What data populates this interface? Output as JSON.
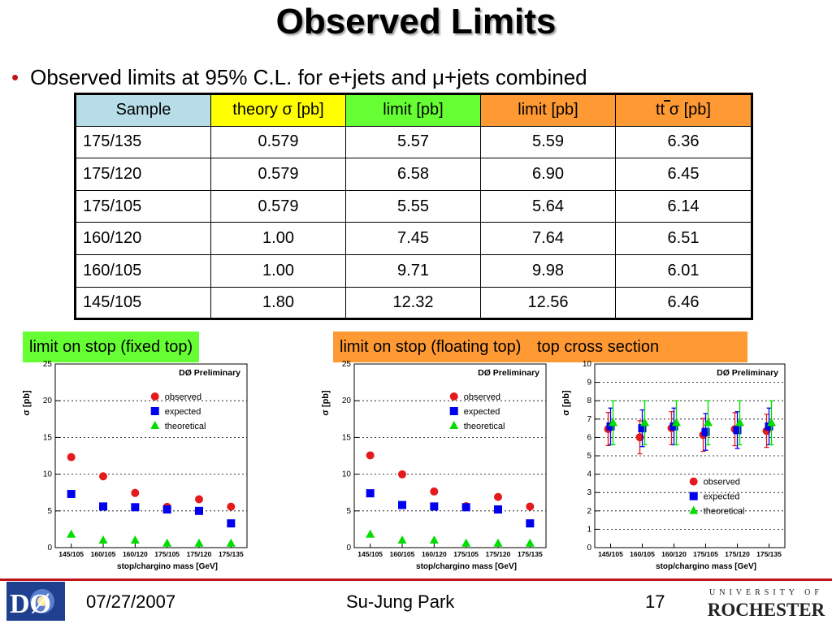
{
  "slide": {
    "title": "Observed Limits",
    "bullet": "Observed limits at 95% C.L. for e+jets and μ+jets combined",
    "footer": {
      "date": "07/27/2007",
      "author": "Su-Jung Park",
      "page": "17"
    },
    "logos": {
      "left": "DØ",
      "right_top": "UNIVERSITY OF",
      "right_bottom": "ROCHESTER"
    }
  },
  "table": {
    "headers": [
      "Sample",
      "theory σ [pb]",
      "limit [pb]",
      "limit [pb]",
      "tt σ [pb]"
    ],
    "header_colors": [
      "#b7dde8",
      "#ffff00",
      "#66ff33",
      "#ff9933",
      "#ff9933"
    ],
    "rows": [
      [
        "175/135",
        "0.579",
        "5.57",
        "5.59",
        "6.36"
      ],
      [
        "175/120",
        "0.579",
        "6.58",
        "6.90",
        "6.45"
      ],
      [
        "175/105",
        "0.579",
        "5.55",
        "5.64",
        "6.14"
      ],
      [
        "160/120",
        "1.00",
        "7.45",
        "7.64",
        "6.51"
      ],
      [
        "160/105",
        "1.00",
        "9.71",
        "9.98",
        "6.01"
      ],
      [
        "145/105",
        "1.80",
        "12.32",
        "12.56",
        "6.46"
      ]
    ]
  },
  "labels": {
    "fixed": "limit on stop (fixed top)",
    "floating": "limit on stop (floating top)",
    "xsec": "top cross section"
  },
  "colors": {
    "green_box": "#66ff33",
    "orange_box": "#ff9933",
    "observed": "#e41a1c",
    "expected": "#0000ee",
    "theoretical": "#00dd00",
    "accent_red": "#c0141b"
  },
  "chart_data": [
    {
      "type": "scatter",
      "title": "DØ Preliminary",
      "xlabel": "stop/chargino mass [GeV]",
      "ylabel": "σ [pb]",
      "categories": [
        "145/105",
        "160/105",
        "160/120",
        "175/105",
        "175/120",
        "175/135"
      ],
      "ylim": [
        0,
        25
      ],
      "yticks": [
        0,
        5,
        10,
        15,
        20,
        25
      ],
      "grid": true,
      "legend_position": "top-right",
      "series": [
        {
          "name": "observed",
          "marker": "circle",
          "values": [
            12.32,
            9.71,
            7.45,
            5.55,
            6.58,
            5.57
          ]
        },
        {
          "name": "expected",
          "marker": "square",
          "values": [
            7.3,
            5.6,
            5.5,
            5.2,
            5.0,
            3.3
          ]
        },
        {
          "name": "theoretical",
          "marker": "triangle",
          "values": [
            1.8,
            1.0,
            1.0,
            0.579,
            0.579,
            0.579
          ]
        }
      ]
    },
    {
      "type": "scatter",
      "title": "DØ Preliminary",
      "xlabel": "stop/chargino mass [GeV]",
      "ylabel": "σ [pb]",
      "categories": [
        "145/105",
        "160/105",
        "160/120",
        "175/105",
        "175/120",
        "175/135"
      ],
      "ylim": [
        0,
        25
      ],
      "yticks": [
        0,
        5,
        10,
        15,
        20,
        25
      ],
      "grid": true,
      "legend_position": "top-right",
      "series": [
        {
          "name": "observed",
          "marker": "circle",
          "values": [
            12.56,
            9.98,
            7.64,
            5.64,
            6.9,
            5.59
          ]
        },
        {
          "name": "expected",
          "marker": "square",
          "values": [
            7.4,
            5.8,
            5.6,
            5.5,
            5.2,
            3.3
          ]
        },
        {
          "name": "theoretical",
          "marker": "triangle",
          "values": [
            1.8,
            1.0,
            1.0,
            0.579,
            0.579,
            0.579
          ]
        }
      ]
    },
    {
      "type": "scatter",
      "title": "DØ Preliminary",
      "xlabel": "stop/chargino mass [GeV]",
      "ylabel": "σ [pb]",
      "categories": [
        "145/105",
        "160/105",
        "160/120",
        "175/105",
        "175/120",
        "175/135"
      ],
      "ylim": [
        0,
        10
      ],
      "yticks": [
        0,
        1,
        2,
        3,
        4,
        5,
        6,
        7,
        8,
        9,
        10
      ],
      "grid": true,
      "legend_position": "bottom-right",
      "series": [
        {
          "name": "observed",
          "marker": "circle",
          "values": [
            6.46,
            6.01,
            6.51,
            6.14,
            6.45,
            6.36
          ],
          "err": [
            0.9,
            0.9,
            0.9,
            0.9,
            0.9,
            0.9
          ]
        },
        {
          "name": "expected",
          "marker": "square",
          "values": [
            6.6,
            6.5,
            6.6,
            6.3,
            6.4,
            6.6
          ],
          "err": [
            1.0,
            1.0,
            1.0,
            1.0,
            1.0,
            1.0
          ]
        },
        {
          "name": "theoretical",
          "marker": "triangle",
          "values": [
            6.8,
            6.8,
            6.8,
            6.8,
            6.8,
            6.8
          ],
          "err": [
            1.2,
            1.2,
            1.2,
            1.2,
            1.2,
            1.2
          ]
        }
      ]
    }
  ]
}
